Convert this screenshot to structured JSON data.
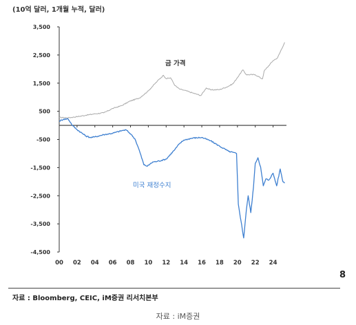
{
  "unit_label": "(10억 달러, 1개월 누적, 달러)",
  "page_number": "8",
  "source": "자료 : Bloomberg, CEIC, iM증권 리서치본부",
  "caption": "자료 : iM증권",
  "colors": {
    "gold": "#a9a9a9",
    "deficit": "#3d7fd0",
    "axis": "#333333"
  },
  "chart_data": {
    "type": "line",
    "title": "",
    "xlabel": "",
    "ylabel": "",
    "x_ticks": [
      "00",
      "02",
      "04",
      "06",
      "08",
      "10",
      "12",
      "14",
      "16",
      "18",
      "20",
      "22",
      "24"
    ],
    "x_range": [
      2000,
      2025.5
    ],
    "y_ticks": [
      "3,500",
      "2,500",
      "1,500",
      "500",
      "-500",
      "-1,500",
      "-2,500",
      "-3,500",
      "-4,500"
    ],
    "y_tick_values": [
      3500,
      2500,
      1500,
      500,
      -500,
      -1500,
      -2500,
      -3500,
      -4500
    ],
    "ylim": [
      -4500,
      3500
    ],
    "grid": false,
    "series": [
      {
        "name": "금 가격",
        "color": "#a9a9a9",
        "x": [
          2000,
          2001,
          2002,
          2003,
          2004,
          2005,
          2006,
          2007,
          2008,
          2009,
          2010,
          2011,
          2011.7,
          2012,
          2012.5,
          2013,
          2013.5,
          2014,
          2015,
          2015.9,
          2016.5,
          2017,
          2018,
          2019,
          2019.5,
          2020,
          2020.6,
          2021,
          2022,
          2022.8,
          2023,
          2024,
          2024.5,
          2025.3
        ],
        "y": [
          280,
          270,
          310,
          360,
          410,
          445,
          600,
          700,
          870,
          970,
          1225,
          1570,
          1780,
          1660,
          1690,
          1410,
          1290,
          1250,
          1150,
          1060,
          1330,
          1260,
          1270,
          1390,
          1480,
          1700,
          1970,
          1800,
          1800,
          1650,
          1930,
          2300,
          2400,
          2950
        ]
      },
      {
        "name": "미국 재정수지",
        "color": "#3d7fd0",
        "x": [
          2000,
          2000.5,
          2001,
          2001.5,
          2002,
          2003,
          2003.5,
          2004,
          2005,
          2006,
          2007,
          2007.5,
          2008,
          2008.5,
          2009,
          2009.5,
          2009.9,
          2010.5,
          2011,
          2012,
          2013,
          2013.5,
          2014,
          2015,
          2016,
          2017,
          2018,
          2019,
          2019.9,
          2020.1,
          2020.4,
          2020.7,
          2021,
          2021.2,
          2021.5,
          2021.8,
          2022,
          2022.3,
          2022.6,
          2022.9,
          2023.2,
          2023.5,
          2024,
          2024.4,
          2024.8,
          2025.1,
          2025.3
        ],
        "y": [
          150,
          220,
          230,
          -10,
          -150,
          -380,
          -430,
          -410,
          -330,
          -280,
          -190,
          -160,
          -300,
          -480,
          -900,
          -1400,
          -1450,
          -1300,
          -1280,
          -1200,
          -850,
          -650,
          -520,
          -450,
          -430,
          -550,
          -740,
          -920,
          -1000,
          -2800,
          -3400,
          -4000,
          -3000,
          -2500,
          -3100,
          -2200,
          -1350,
          -1150,
          -1480,
          -2150,
          -1900,
          -1950,
          -1700,
          -2150,
          -1550,
          -2000,
          -2050
        ]
      }
    ],
    "annotations": [
      {
        "text": "금 가격",
        "series": "금 가격"
      },
      {
        "text": "미국 재정수지",
        "series": "미국 재정수지"
      }
    ]
  }
}
